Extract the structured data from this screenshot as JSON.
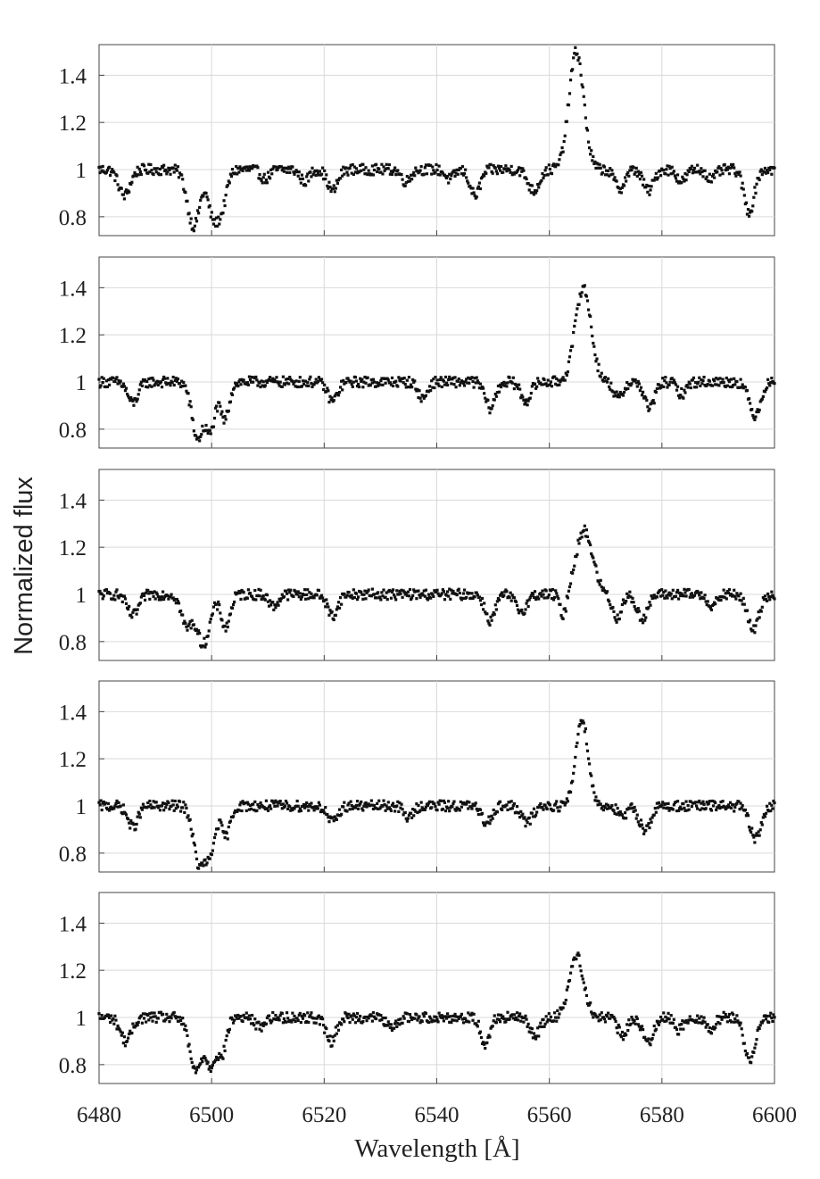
{
  "chart_data": {
    "type": "scatter",
    "layout": "5 vertically stacked panels sharing the x axis",
    "xlabel": "Wavelength [Å]",
    "ylabel": "Normalized flux",
    "xlim": [
      6480,
      6600
    ],
    "ylim": [
      0.72,
      1.53
    ],
    "x_ticks": [
      6480,
      6500,
      6520,
      6540,
      6560,
      6580,
      6600
    ],
    "y_ticks": [
      0.8,
      1,
      1.2,
      1.4
    ],
    "y_tick_labels": [
      "0.8",
      "1",
      "1.2",
      "1.4"
    ],
    "grid": true,
    "marker_color": "#111111",
    "panels": [
      {
        "features": [
          {
            "x": 6484.5,
            "y": 0.89,
            "w": 1.0
          },
          {
            "x": 6496.8,
            "y": 0.76,
            "w": 1.1
          },
          {
            "x": 6500.2,
            "y": 0.82,
            "w": 0.9
          },
          {
            "x": 6501.8,
            "y": 0.85,
            "w": 0.9
          },
          {
            "x": 6509.5,
            "y": 0.96,
            "w": 0.8
          },
          {
            "x": 6516.5,
            "y": 0.95,
            "w": 0.8
          },
          {
            "x": 6521.5,
            "y": 0.91,
            "w": 0.9
          },
          {
            "x": 6534.5,
            "y": 0.95,
            "w": 0.8
          },
          {
            "x": 6542.3,
            "y": 0.96,
            "w": 0.8
          },
          {
            "x": 6546.8,
            "y": 0.89,
            "w": 0.9
          },
          {
            "x": 6557.2,
            "y": 0.91,
            "w": 1.0
          },
          {
            "x": 6572.5,
            "y": 0.92,
            "w": 0.9
          },
          {
            "x": 6577.6,
            "y": 0.91,
            "w": 0.9
          },
          {
            "x": 6583.5,
            "y": 0.95,
            "w": 0.8
          },
          {
            "x": 6588.8,
            "y": 0.96,
            "w": 0.8
          },
          {
            "x": 6595.5,
            "y": 0.82,
            "w": 0.9
          }
        ],
        "emission": {
          "x": 6564.8,
          "y": 1.5,
          "w": 1.3
        }
      },
      {
        "features": [
          {
            "x": 6486.0,
            "y": 0.91,
            "w": 0.9
          },
          {
            "x": 6497.5,
            "y": 0.76,
            "w": 1.0
          },
          {
            "x": 6499.8,
            "y": 0.8,
            "w": 0.8
          },
          {
            "x": 6502.3,
            "y": 0.84,
            "w": 0.8
          },
          {
            "x": 6521.5,
            "y": 0.92,
            "w": 0.9
          },
          {
            "x": 6537.5,
            "y": 0.93,
            "w": 0.8
          },
          {
            "x": 6549.5,
            "y": 0.89,
            "w": 0.9
          },
          {
            "x": 6555.8,
            "y": 0.92,
            "w": 0.9
          },
          {
            "x": 6572.3,
            "y": 0.93,
            "w": 0.8
          },
          {
            "x": 6577.8,
            "y": 0.89,
            "w": 0.9
          },
          {
            "x": 6583.5,
            "y": 0.95,
            "w": 0.8
          },
          {
            "x": 6596.5,
            "y": 0.86,
            "w": 1.0
          }
        ],
        "emission": {
          "x": 6566.0,
          "y": 1.4,
          "w": 1.4
        }
      },
      {
        "features": [
          {
            "x": 6486.0,
            "y": 0.91,
            "w": 1.0
          },
          {
            "x": 6495.5,
            "y": 0.87,
            "w": 0.9
          },
          {
            "x": 6498.5,
            "y": 0.79,
            "w": 1.2
          },
          {
            "x": 6502.5,
            "y": 0.86,
            "w": 0.8
          },
          {
            "x": 6511.0,
            "y": 0.95,
            "w": 0.8
          },
          {
            "x": 6521.5,
            "y": 0.91,
            "w": 0.9
          },
          {
            "x": 6549.5,
            "y": 0.89,
            "w": 0.9
          },
          {
            "x": 6555.0,
            "y": 0.93,
            "w": 1.0
          },
          {
            "x": 6562.5,
            "y": 0.9,
            "w": 0.6
          },
          {
            "x": 6572.0,
            "y": 0.9,
            "w": 0.8
          },
          {
            "x": 6576.5,
            "y": 0.9,
            "w": 1.0
          },
          {
            "x": 6589.0,
            "y": 0.95,
            "w": 0.8
          },
          {
            "x": 6596.2,
            "y": 0.85,
            "w": 1.0
          }
        ],
        "emission": {
          "x": 6566.2,
          "y": 1.27,
          "w": 1.5
        }
      },
      {
        "features": [
          {
            "x": 6486.0,
            "y": 0.91,
            "w": 0.9
          },
          {
            "x": 6497.8,
            "y": 0.75,
            "w": 1.0
          },
          {
            "x": 6499.8,
            "y": 0.81,
            "w": 0.8
          },
          {
            "x": 6502.5,
            "y": 0.87,
            "w": 0.8
          },
          {
            "x": 6521.5,
            "y": 0.93,
            "w": 0.9
          },
          {
            "x": 6535.0,
            "y": 0.95,
            "w": 0.8
          },
          {
            "x": 6548.8,
            "y": 0.93,
            "w": 0.9
          },
          {
            "x": 6556.0,
            "y": 0.93,
            "w": 1.0
          },
          {
            "x": 6573.0,
            "y": 0.95,
            "w": 0.8
          },
          {
            "x": 6577.0,
            "y": 0.9,
            "w": 1.0
          },
          {
            "x": 6596.6,
            "y": 0.86,
            "w": 1.0
          }
        ],
        "emission": {
          "x": 6565.8,
          "y": 1.37,
          "w": 1.1
        }
      },
      {
        "features": [
          {
            "x": 6484.8,
            "y": 0.9,
            "w": 1.0
          },
          {
            "x": 6497.2,
            "y": 0.77,
            "w": 1.1
          },
          {
            "x": 6499.8,
            "y": 0.81,
            "w": 0.8
          },
          {
            "x": 6501.8,
            "y": 0.84,
            "w": 0.8
          },
          {
            "x": 6508.5,
            "y": 0.96,
            "w": 0.8
          },
          {
            "x": 6521.2,
            "y": 0.9,
            "w": 0.9
          },
          {
            "x": 6532.0,
            "y": 0.95,
            "w": 0.8
          },
          {
            "x": 6548.6,
            "y": 0.89,
            "w": 0.8
          },
          {
            "x": 6557.5,
            "y": 0.93,
            "w": 1.0
          },
          {
            "x": 6573.0,
            "y": 0.92,
            "w": 0.8
          },
          {
            "x": 6577.5,
            "y": 0.89,
            "w": 0.9
          },
          {
            "x": 6583.0,
            "y": 0.95,
            "w": 0.8
          },
          {
            "x": 6588.5,
            "y": 0.95,
            "w": 0.8
          },
          {
            "x": 6595.6,
            "y": 0.81,
            "w": 0.9
          }
        ],
        "emission": {
          "x": 6564.8,
          "y": 1.26,
          "w": 1.3
        }
      }
    ]
  }
}
